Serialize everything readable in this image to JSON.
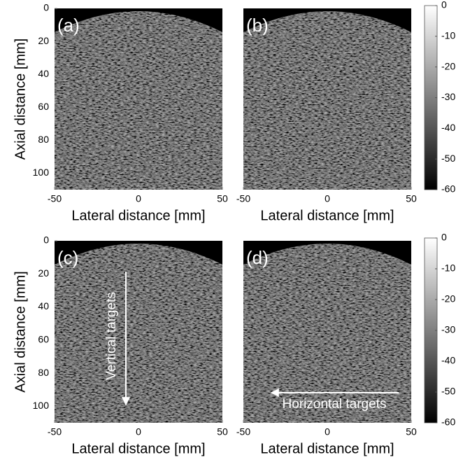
{
  "chart_data": [
    {
      "type": "image",
      "panel_label": "(a)",
      "ylabel": "Axial distance [mm]",
      "xlabel": "Lateral distance [mm]",
      "xlim": [
        -50,
        50
      ],
      "ylim": [
        110,
        0
      ],
      "xticks": [
        -50,
        0,
        50
      ],
      "yticks": [
        0,
        20,
        40,
        60,
        80,
        100
      ]
    },
    {
      "type": "image",
      "panel_label": "(b)",
      "xlabel": "Lateral distance [mm]",
      "xlim": [
        -50,
        50
      ],
      "ylim": [
        110,
        0
      ],
      "xticks": [
        -50,
        0,
        50
      ],
      "colorbar": {
        "lim": [
          -60,
          0
        ],
        "ticks": [
          0,
          -10,
          -20,
          -30,
          -40,
          -50,
          -60
        ]
      }
    },
    {
      "type": "image",
      "panel_label": "(c)",
      "ylabel": "Axial distance [mm]",
      "xlabel": "Lateral distance [mm]",
      "xlim": [
        -50,
        50
      ],
      "ylim": [
        110,
        0
      ],
      "xticks": [
        -50,
        0,
        50
      ],
      "yticks": [
        0,
        20,
        40,
        60,
        80,
        100
      ],
      "annotation": "Vertical targets"
    },
    {
      "type": "image",
      "panel_label": "(d)",
      "xlabel": "Lateral distance [mm]",
      "xlim": [
        -50,
        50
      ],
      "ylim": [
        110,
        0
      ],
      "xticks": [
        -50,
        0,
        50
      ],
      "colorbar": {
        "lim": [
          -60,
          0
        ],
        "ticks": [
          0,
          -10,
          -20,
          -30,
          -40,
          -50,
          -60
        ]
      },
      "annotation": "Horizontal targets"
    }
  ]
}
